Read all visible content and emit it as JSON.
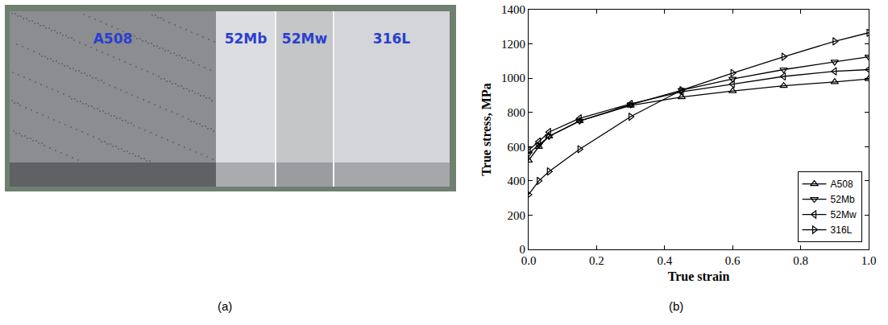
{
  "photo": {
    "caption": "(a)",
    "labels": [
      "A508",
      "52Mb",
      "52Mw",
      "316L"
    ]
  },
  "chart_data": {
    "type": "line",
    "annotations": [
      {
        "text": "(b)"
      }
    ],
    "xlabel": "True strain",
    "ylabel": "True stress, MPa",
    "xlim": [
      0,
      1
    ],
    "ylim": [
      0,
      1400
    ],
    "xticks": [
      {
        "value": 0,
        "label": "0.0"
      },
      {
        "value": 0.2,
        "label": "0.2"
      },
      {
        "value": 0.4,
        "label": "0.4"
      },
      {
        "value": 0.6,
        "label": "0.6"
      },
      {
        "value": 0.8,
        "label": "0.8"
      },
      {
        "value": 1,
        "label": "1.0"
      }
    ],
    "yticks": [
      0,
      200,
      400,
      600,
      800,
      1000,
      1200,
      1400
    ],
    "legend": "lower right",
    "grid": false,
    "x": [
      0,
      0.03,
      0.06,
      0.15,
      0.3,
      0.45,
      0.6,
      0.75,
      0.9,
      1.0
    ],
    "series": [
      {
        "name": "A508",
        "color": "#000000",
        "marker": "triangle-up",
        "values": [
          520,
          600,
          660,
          750,
          840,
          890,
          925,
          955,
          978,
          995
        ]
      },
      {
        "name": "52Mb",
        "color": "#000000",
        "marker": "triangle-down",
        "values": [
          560,
          610,
          660,
          750,
          845,
          930,
          995,
          1050,
          1095,
          1125
        ]
      },
      {
        "name": "52Mw",
        "color": "#000000",
        "marker": "triangle-left",
        "values": [
          580,
          630,
          685,
          765,
          850,
          920,
          965,
          1010,
          1040,
          1050
        ]
      },
      {
        "name": "316L",
        "color": "#000000",
        "marker": "triangle-right",
        "values": [
          320,
          400,
          455,
          585,
          775,
          930,
          1030,
          1125,
          1215,
          1265
        ]
      }
    ]
  }
}
